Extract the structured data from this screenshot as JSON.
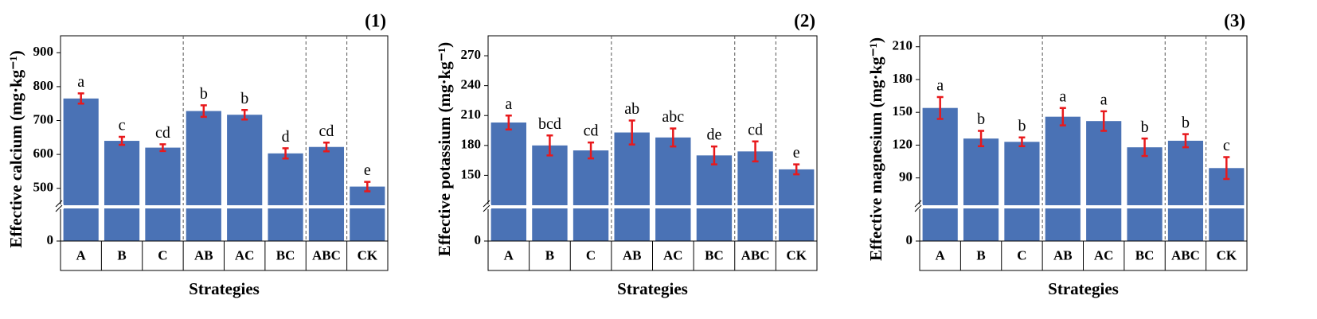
{
  "chart_data": [
    {
      "type": "bar",
      "panel": "(1)",
      "ylabel": "Effective calcium (mg·kg⁻¹)",
      "xlabel": "Strategies",
      "categories": [
        "A",
        "B",
        "C",
        "AB",
        "AC",
        "BC",
        "ABC",
        "CK"
      ],
      "values": [
        765,
        640,
        620,
        728,
        717,
        603,
        622,
        505
      ],
      "errors": [
        15,
        12,
        10,
        17,
        14,
        15,
        13,
        14
      ],
      "letters": [
        "a",
        "c",
        "cd",
        "b",
        "b",
        "d",
        "cd",
        "e"
      ],
      "color": "#4a72b5",
      "error_color": "#e8191c",
      "ylim": [
        0,
        950
      ],
      "axis_break": [
        50,
        450
      ],
      "yticks": [
        0,
        500,
        600,
        700,
        800,
        900
      ],
      "separators_after": [
        2,
        5,
        6
      ]
    },
    {
      "type": "bar",
      "panel": "(2)",
      "ylabel": "Effective potassium (mg·kg⁻¹)",
      "xlabel": "Strategies",
      "categories": [
        "A",
        "B",
        "C",
        "AB",
        "AC",
        "BC",
        "ABC",
        "CK"
      ],
      "values": [
        203,
        180,
        175,
        193,
        188,
        170,
        174,
        156
      ],
      "errors": [
        7,
        10,
        8,
        12,
        9,
        9,
        10,
        5
      ],
      "letters": [
        "a",
        "bcd",
        "cd",
        "ab",
        "abc",
        "de",
        "cd",
        "e"
      ],
      "color": "#4a72b5",
      "error_color": "#e8191c",
      "ylim": [
        0,
        290
      ],
      "axis_break": [
        20,
        120
      ],
      "yticks": [
        0,
        150,
        180,
        210,
        240,
        270
      ],
      "separators_after": [
        2,
        5,
        6
      ]
    },
    {
      "type": "bar",
      "panel": "(3)",
      "ylabel": "Effective magnesium (mg·kg⁻¹)",
      "xlabel": "Strategies",
      "categories": [
        "A",
        "B",
        "C",
        "AB",
        "AC",
        "BC",
        "ABC",
        "CK"
      ],
      "values": [
        154,
        126,
        123,
        146,
        142,
        118,
        124,
        99
      ],
      "errors": [
        10,
        7,
        4,
        8,
        9,
        8,
        6,
        10
      ],
      "letters": [
        "a",
        "b",
        "b",
        "a",
        "a",
        "b",
        "b",
        "c"
      ],
      "color": "#4a72b5",
      "error_color": "#e8191c",
      "ylim": [
        0,
        220
      ],
      "axis_break": [
        10,
        65
      ],
      "yticks": [
        0,
        90,
        120,
        150,
        180,
        210
      ],
      "separators_after": [
        2,
        5,
        6
      ]
    }
  ]
}
